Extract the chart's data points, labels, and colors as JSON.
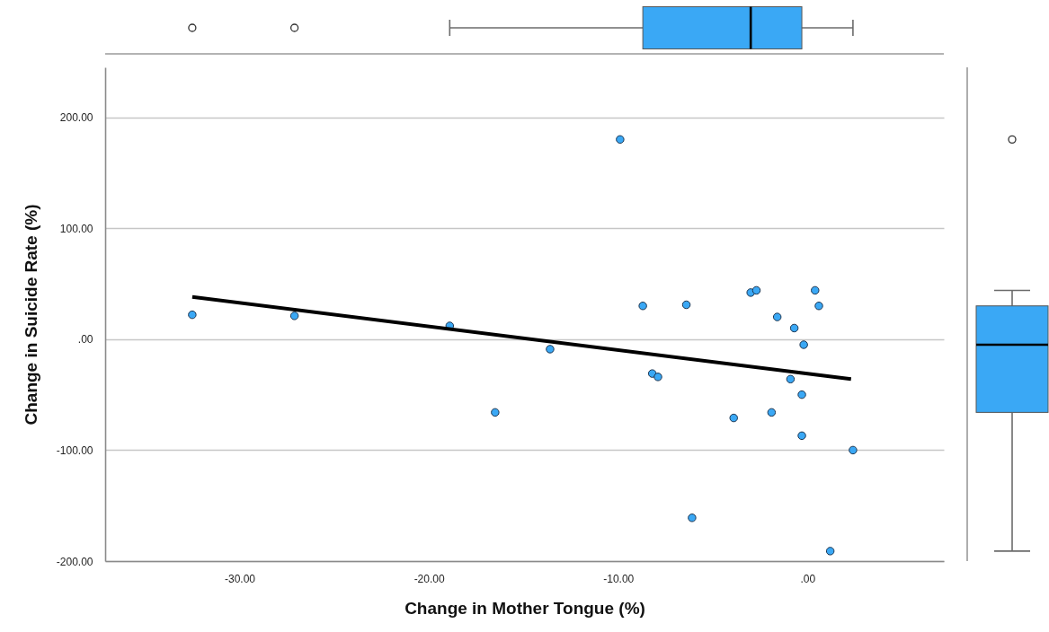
{
  "chart_data": {
    "type": "scatter",
    "xlabel": "Change in Mother Tongue (%)",
    "ylabel": "Change in Suicide Rate (%)",
    "xlim": [
      -37.1,
      7.2
    ],
    "ylim": [
      -200,
      245
    ],
    "xticks": [
      {
        "value": -30,
        "label": "-30.00"
      },
      {
        "value": -20,
        "label": "-20.00"
      },
      {
        "value": -10,
        "label": "-10.00"
      },
      {
        "value": 0,
        "label": ".00"
      }
    ],
    "yticks": [
      {
        "value": -200,
        "label": "-200.00"
      },
      {
        "value": -100,
        "label": "-100.00"
      },
      {
        "value": 0,
        "label": ".00"
      },
      {
        "value": 100,
        "label": "100.00"
      },
      {
        "value": 200,
        "label": "200.00"
      }
    ],
    "grid": "y",
    "series": [
      {
        "type": "scatter",
        "marker": "circle",
        "color": "#3aa8f5",
        "x": [
          -32.5,
          -27.1,
          -18.9,
          -16.5,
          -9.9,
          -8.7,
          -6.4,
          -3.0,
          -2.7,
          0.4,
          0.6,
          -1.6,
          -0.7,
          -0.2,
          -13.6,
          -8.2,
          -7.9,
          -0.9,
          -0.3,
          -3.9,
          -1.9,
          -0.3,
          2.4,
          -6.1,
          1.2
        ],
        "values": [
          22,
          21,
          12,
          -66,
          180,
          30,
          31,
          42,
          44,
          44,
          30,
          20,
          10,
          -5,
          -9,
          -31,
          -34,
          -36,
          -50,
          -71,
          -66,
          -87,
          -100,
          -161,
          -191
        ]
      },
      {
        "type": "line",
        "color": "#000000",
        "x": [
          -32.5,
          2.3
        ],
        "values": [
          38,
          -36
        ]
      }
    ]
  }
}
